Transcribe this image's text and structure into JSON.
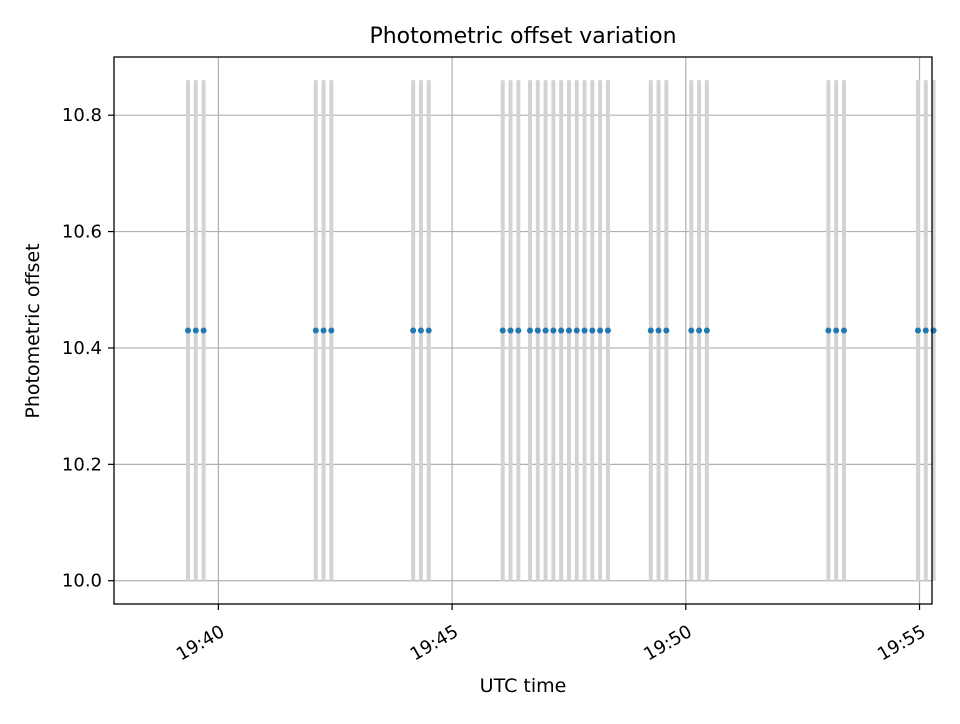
{
  "chart_data": {
    "type": "scatter",
    "title": "Photometric offset variation",
    "xlabel": "UTC time",
    "ylabel": "Photometric offset",
    "xlim": [
      "19:37:46",
      "19:55:16"
    ],
    "ylim": [
      9.96,
      10.9
    ],
    "x_ticks": [
      {
        "label": "19:40",
        "value": "19:40:00"
      },
      {
        "label": "19:45",
        "value": "19:45:00"
      },
      {
        "label": "19:50",
        "value": "19:50:00"
      },
      {
        "label": "19:55",
        "value": "19:55:00"
      }
    ],
    "y_ticks": [
      {
        "label": "10.0",
        "value": 10.0
      },
      {
        "label": "10.2",
        "value": 10.2
      },
      {
        "label": "10.4",
        "value": 10.4
      },
      {
        "label": "10.6",
        "value": 10.6
      },
      {
        "label": "10.8",
        "value": 10.8
      }
    ],
    "grid": true,
    "series": [
      {
        "marker": "dot",
        "color": "#1f77b4",
        "x": [
          "19:39:21",
          "19:39:31",
          "19:39:41",
          "19:42:05",
          "19:42:15",
          "19:42:25",
          "19:44:10",
          "19:44:20",
          "19:44:30",
          "19:46:05",
          "19:46:15",
          "19:46:25",
          "19:46:40",
          "19:46:50",
          "19:47:00",
          "19:47:10",
          "19:47:20",
          "19:47:30",
          "19:47:40",
          "19:47:50",
          "19:48:00",
          "19:48:10",
          "19:48:20",
          "19:49:15",
          "19:49:25",
          "19:49:35",
          "19:50:07",
          "19:50:17",
          "19:50:27",
          "19:53:03",
          "19:53:13",
          "19:53:23",
          "19:54:58",
          "19:55:08",
          "19:55:18"
        ],
        "y": [
          10.43,
          10.43,
          10.43,
          10.43,
          10.43,
          10.43,
          10.43,
          10.43,
          10.43,
          10.43,
          10.43,
          10.43,
          10.43,
          10.43,
          10.43,
          10.43,
          10.43,
          10.43,
          10.43,
          10.43,
          10.43,
          10.43,
          10.43,
          10.43,
          10.43,
          10.43,
          10.43,
          10.43,
          10.43,
          10.43,
          10.43,
          10.43,
          10.43,
          10.43,
          10.43
        ]
      }
    ],
    "vertical_lines": {
      "color": "#d3d3d3",
      "ymin": 10.0,
      "ymax": 10.86,
      "x": [
        "19:39:21",
        "19:39:31",
        "19:39:41",
        "19:42:05",
        "19:42:15",
        "19:42:25",
        "19:44:10",
        "19:44:20",
        "19:44:30",
        "19:46:05",
        "19:46:15",
        "19:46:25",
        "19:46:40",
        "19:46:50",
        "19:47:00",
        "19:47:10",
        "19:47:20",
        "19:47:30",
        "19:47:40",
        "19:47:50",
        "19:48:00",
        "19:48:10",
        "19:48:20",
        "19:49:15",
        "19:49:25",
        "19:49:35",
        "19:50:07",
        "19:50:17",
        "19:50:27",
        "19:53:03",
        "19:53:13",
        "19:53:23",
        "19:54:58",
        "19:55:08",
        "19:55:18"
      ]
    }
  }
}
